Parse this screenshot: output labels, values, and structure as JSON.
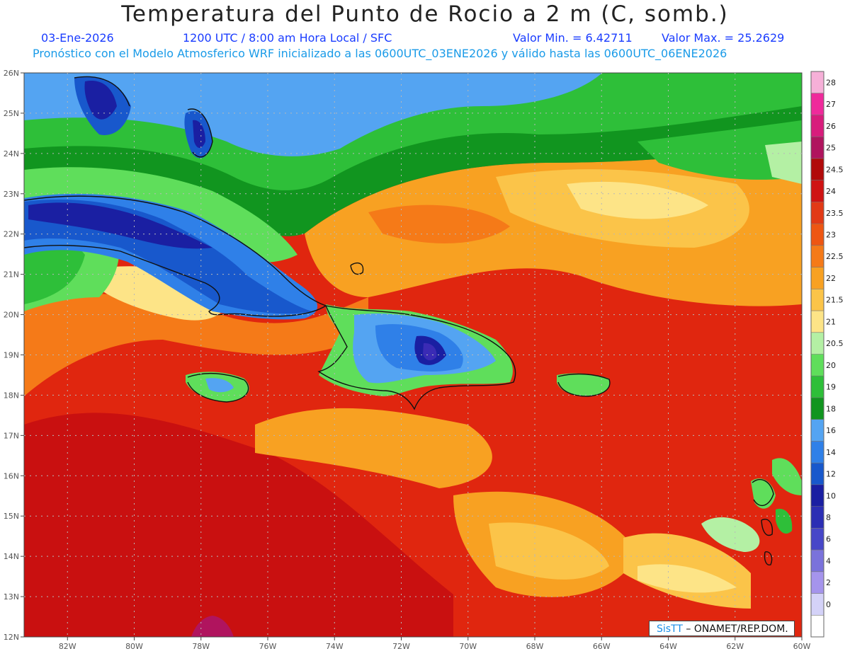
{
  "header": {
    "title": "Temperatura del Punto de Rocio a 2 m (C, somb.)",
    "date": "03-Ene-2026",
    "time_info": "1200 UTC / 8:00 am Hora Local / SFC",
    "min_label": "Valor Min. = 6.42711",
    "max_label": "Valor Max. = 25.2629",
    "model_info": "Pronóstico con el Modelo Atmosferico WRF inicializado a las 0600UTC_03ENE2026 y válido hasta las  0600UTC_06ENE2026"
  },
  "axes": {
    "lat_labels": [
      "26N",
      "25N",
      "24N",
      "23N",
      "22N",
      "21N",
      "20N",
      "19N",
      "18N",
      "17N",
      "16N",
      "15N",
      "14N",
      "13N",
      "12N"
    ],
    "lon_labels": [
      "82W",
      "80W",
      "78W",
      "76W",
      "74W",
      "72W",
      "70W",
      "68W",
      "66W",
      "64W",
      "62W",
      "60W"
    ],
    "lat_range": [
      12,
      26
    ],
    "lon_range": [
      -83.3,
      -60
    ],
    "grid": true
  },
  "colorbar": {
    "labels": [
      "28",
      "27",
      "26",
      "25",
      "24.5",
      "24",
      "23.5",
      "23",
      "22.5",
      "22",
      "21.5",
      "21",
      "20.5",
      "20",
      "19",
      "18",
      "16",
      "14",
      "12",
      "10",
      "8",
      "6",
      "4",
      "2",
      "0"
    ],
    "colors": [
      "#f6b0d8",
      "#ef2a9b",
      "#d81c7c",
      "#b0145e",
      "#b10a0a",
      "#cf1313",
      "#e23a16",
      "#ee5612",
      "#f57a18",
      "#f8a122",
      "#fbc449",
      "#fde487",
      "#b4f0a4",
      "#5fde5b",
      "#2ebf39",
      "#11951f",
      "#54a4f2",
      "#2f80e8",
      "#1858cc",
      "#1a1fa2",
      "#2b2eb4",
      "#4747c8",
      "#7a72db",
      "#a594ec",
      "#d4d2f8",
      "#ffffff"
    ]
  },
  "footer": {
    "logo": "SisTT",
    "credit": "– ONAMET/REP.DOM."
  }
}
